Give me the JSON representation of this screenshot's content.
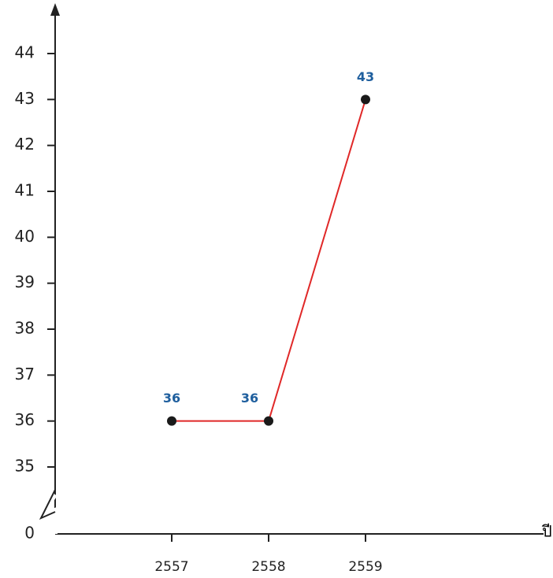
{
  "chart_data": {
    "type": "line",
    "categories": [
      "2557",
      "2558",
      "2559"
    ],
    "values": [
      36,
      36,
      43
    ],
    "value_labels": [
      "36",
      "36",
      "43"
    ],
    "color": "#e02828",
    "marker_color": "#1a1a1a",
    "label_color": "#1f5f9e",
    "x_label": "ปี",
    "ylim": [
      35,
      44
    ],
    "yticks": [
      0,
      35,
      36,
      37,
      38,
      39,
      40,
      41,
      42,
      43,
      44
    ],
    "axis_break": true
  }
}
